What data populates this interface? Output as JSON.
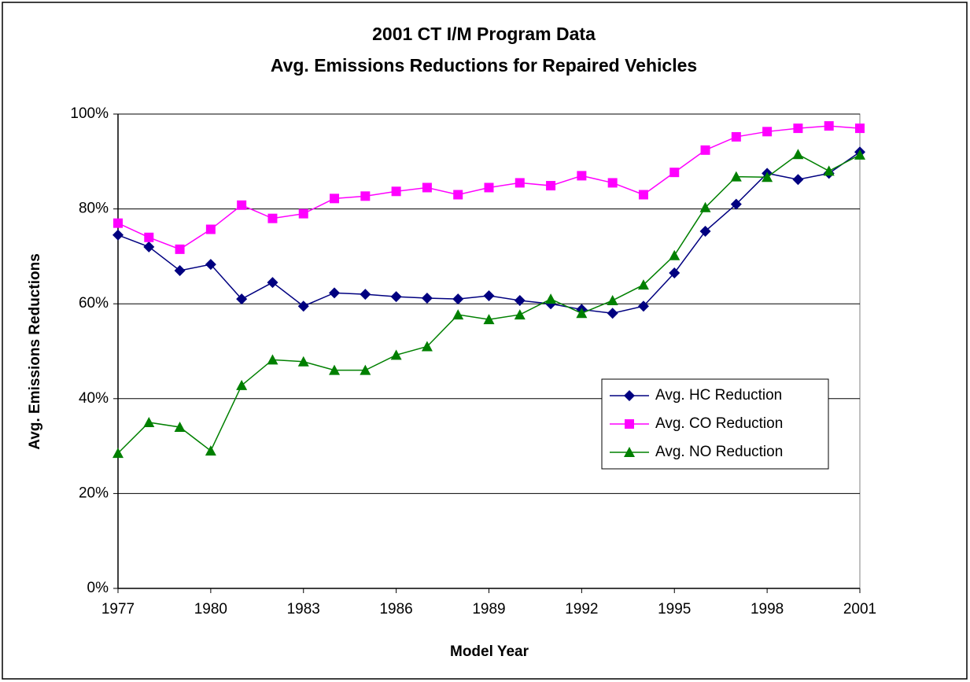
{
  "chart_data": {
    "type": "line",
    "title": [
      "2001 CT I/M Program Data",
      "Avg. Emissions Reductions for Repaired Vehicles"
    ],
    "x_label": "Model Year",
    "y_label": "Avg. Emissions Reductions",
    "x": [
      1977,
      1978,
      1979,
      1980,
      1981,
      1982,
      1983,
      1984,
      1985,
      1986,
      1987,
      1988,
      1989,
      1990,
      1991,
      1992,
      1993,
      1994,
      1995,
      1996,
      1997,
      1998,
      1999,
      2000,
      2001
    ],
    "series": [
      {
        "name": "Avg. HC Reduction",
        "color": "#000080",
        "marker": "diamond",
        "values": [
          74.5,
          72,
          67,
          68.3,
          61,
          64.5,
          59.5,
          62.3,
          62,
          61.5,
          61.2,
          61,
          61.7,
          60.7,
          60,
          58.8,
          58,
          59.5,
          66.5,
          75.3,
          81,
          87.5,
          86.2,
          87.5,
          92
        ]
      },
      {
        "name": "Avg. CO Reduction",
        "color": "#ff00ff",
        "marker": "square",
        "values": [
          77,
          74,
          71.5,
          75.7,
          80.8,
          78,
          79,
          82.2,
          82.7,
          83.7,
          84.5,
          83,
          84.5,
          85.5,
          84.9,
          87,
          85.5,
          83,
          87.7,
          92.4,
          95.2,
          96.3,
          97,
          97.5,
          97
        ]
      },
      {
        "name": "Avg. NO Reduction",
        "color": "#008000",
        "marker": "triangle",
        "values": [
          28.5,
          35,
          34,
          29,
          42.8,
          48.2,
          47.8,
          46,
          46,
          49.2,
          51,
          57.7,
          56.7,
          57.7,
          61,
          58,
          60.7,
          64,
          70.2,
          80.3,
          86.8,
          86.7,
          91.5,
          88,
          91.4
        ]
      }
    ],
    "xlim": [
      1977,
      2001
    ],
    "xticks": [
      1977,
      1980,
      1983,
      1986,
      1989,
      1992,
      1995,
      1998,
      2001
    ],
    "ylim": [
      0,
      100
    ],
    "yticks": [
      {
        "value": 0,
        "label": "0%"
      },
      {
        "value": 20,
        "label": "20%"
      },
      {
        "value": 40,
        "label": "40%"
      },
      {
        "value": 60,
        "label": "60%"
      },
      {
        "value": 80,
        "label": "80%"
      },
      {
        "value": 100,
        "label": "100%"
      }
    ],
    "grid": true,
    "legend": "right"
  }
}
